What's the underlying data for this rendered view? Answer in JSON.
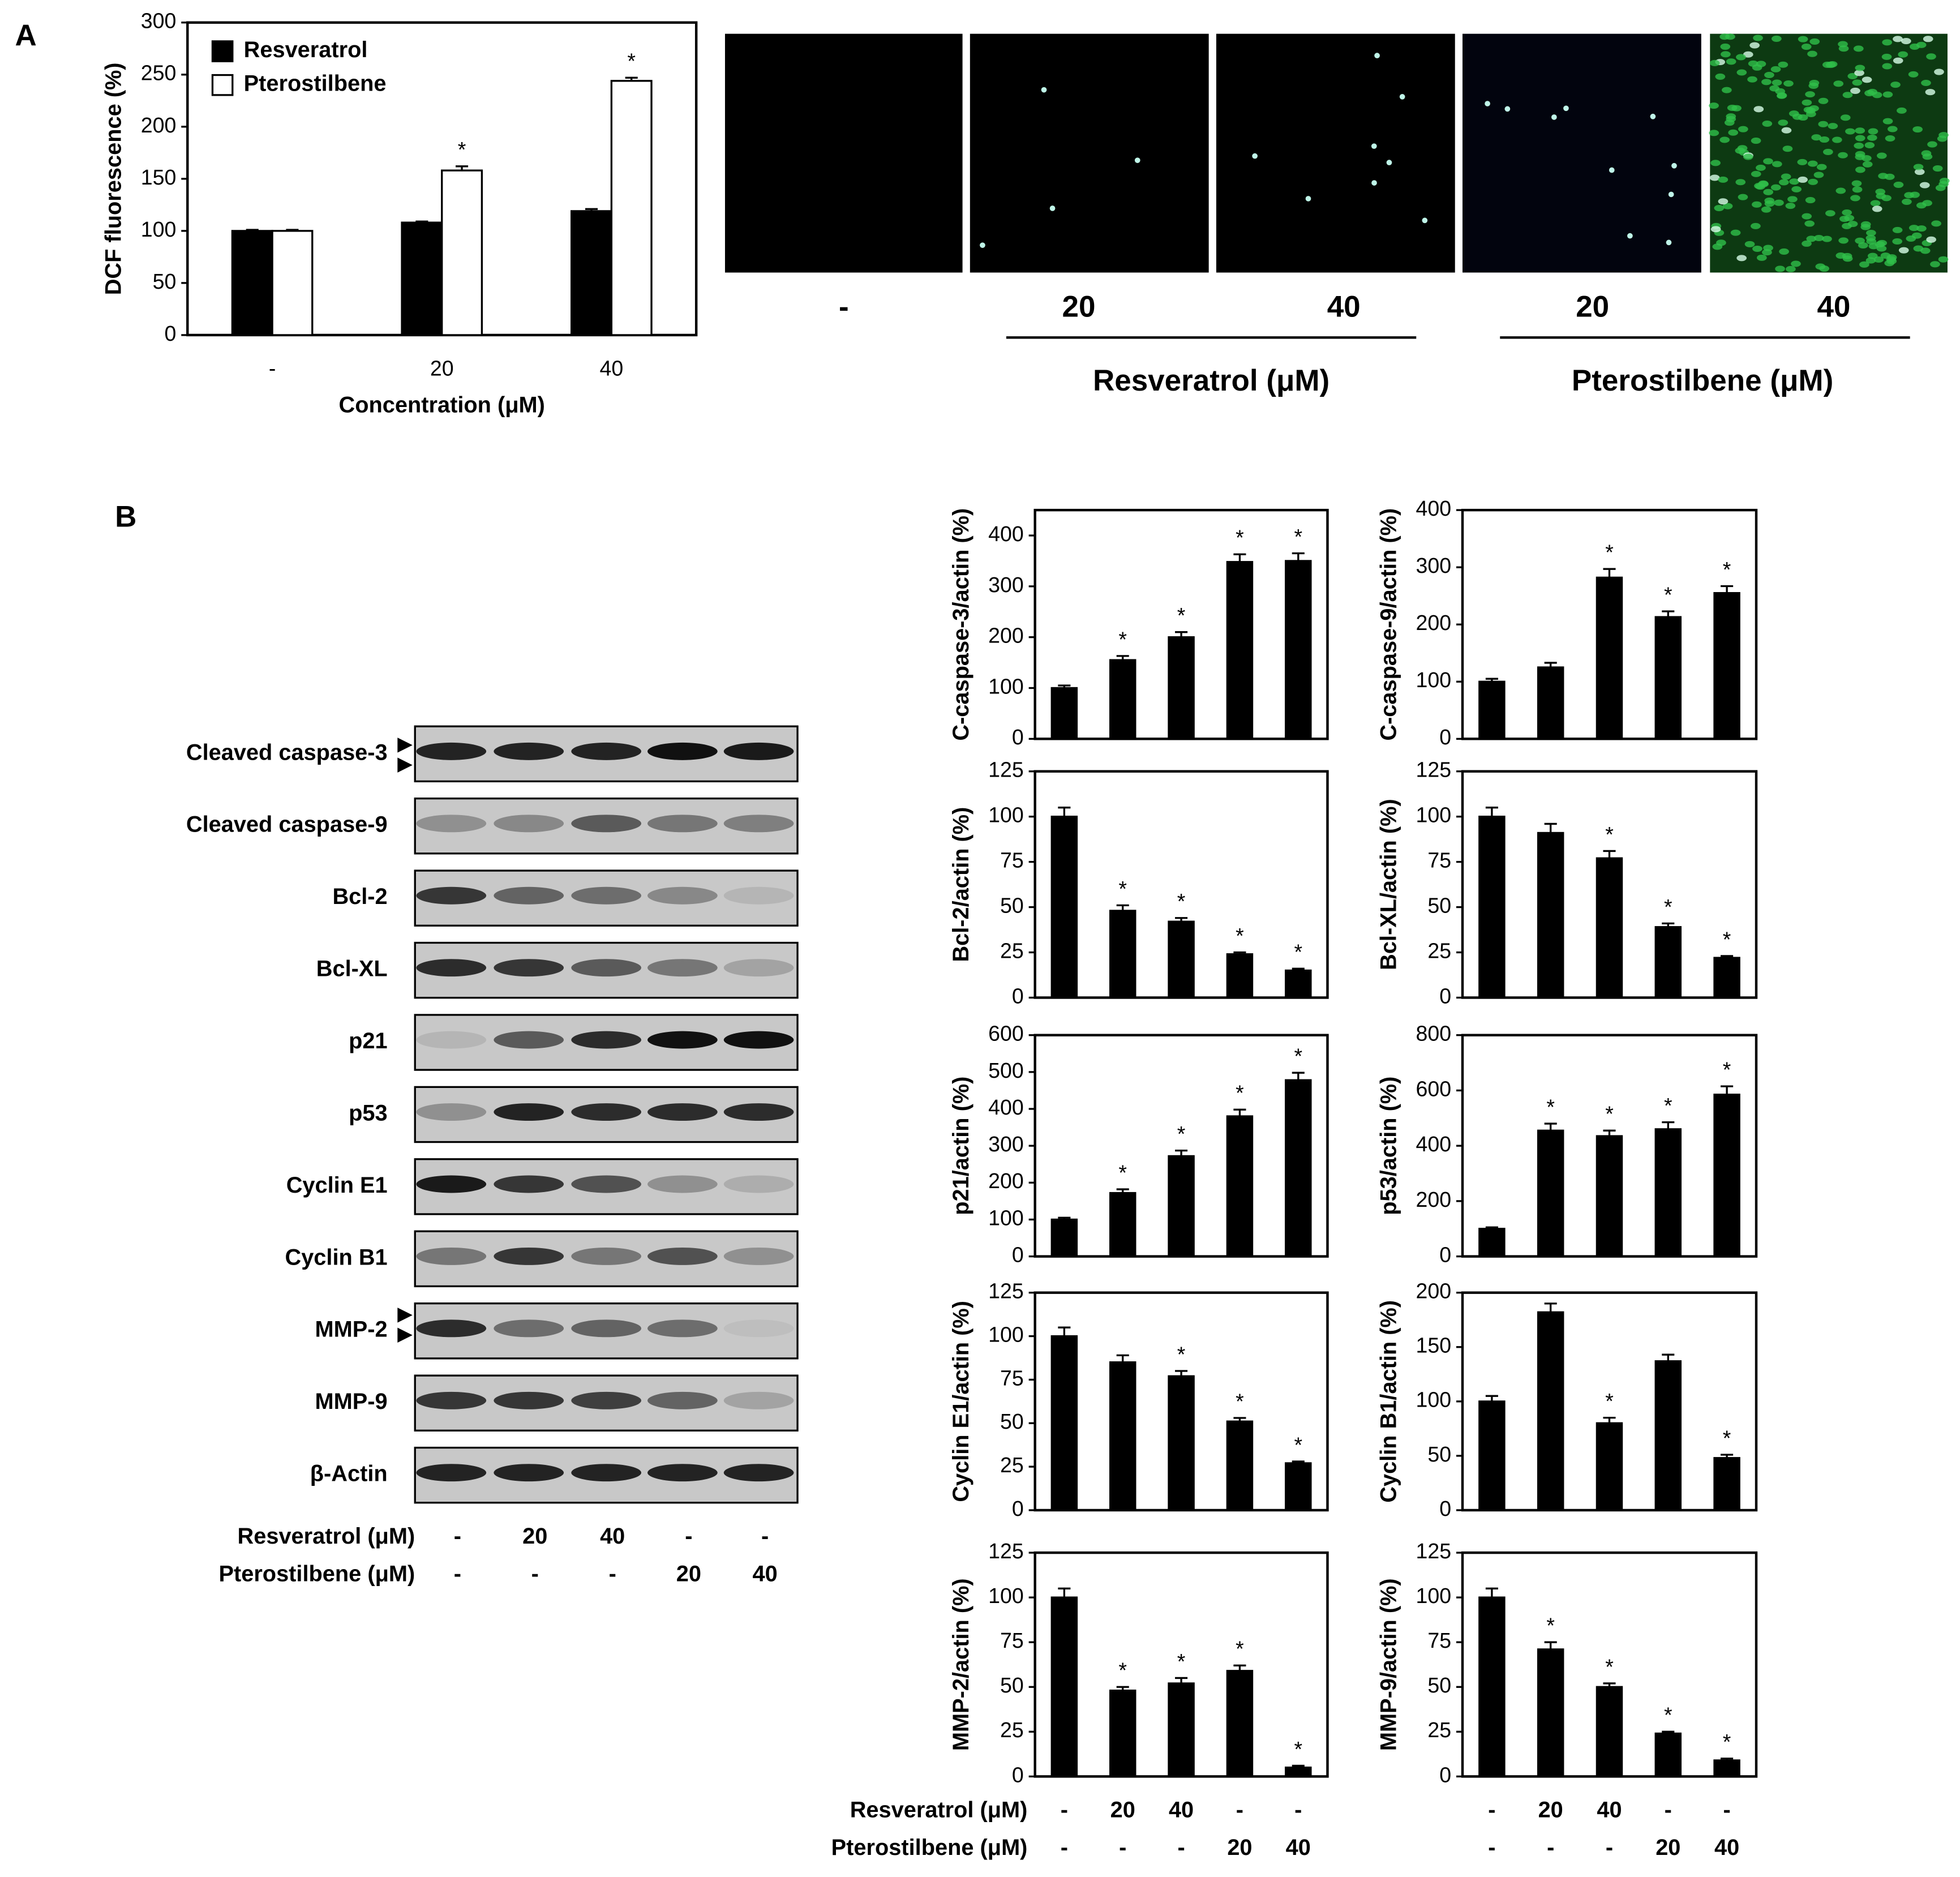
{
  "panel_labels": [
    "A",
    "B"
  ],
  "chart_data": [
    {
      "type": "bar",
      "ylabel": "DCF fluorescence (%)",
      "xlabel": "Concentration (μM)",
      "categories": [
        "-",
        "20",
        "40"
      ],
      "series": [
        {
          "name": "Resveratrol",
          "color": "#000000",
          "values": [
            100,
            108,
            119
          ],
          "errors": [
            1,
            1,
            2
          ],
          "significance": [
            null,
            null,
            null
          ]
        },
        {
          "name": "Pterostilbene",
          "color": "#ffffff",
          "values": [
            100,
            158,
            244
          ],
          "errors": [
            1,
            4,
            3
          ],
          "significance": [
            null,
            "*",
            "*"
          ]
        }
      ],
      "ylim": [
        0,
        300
      ],
      "yticks": [
        0,
        50,
        100,
        150,
        200,
        250,
        300
      ],
      "legend": "upper-left"
    },
    {
      "type": "bar",
      "ylabel": "C-caspase-3/actin (%)",
      "color": "#000000",
      "values": [
        100,
        155,
        200,
        348,
        350
      ],
      "errors": [
        5,
        8,
        10,
        15,
        15
      ],
      "significance": [
        null,
        "*",
        "*",
        "*",
        "*"
      ],
      "ylim": [
        0,
        450
      ],
      "yticks": [
        0,
        100,
        200,
        300,
        400
      ]
    },
    {
      "type": "bar",
      "ylabel": "C-caspase-9/actin (%)",
      "color": "#000000",
      "values": [
        100,
        125,
        282,
        213,
        255
      ],
      "errors": [
        5,
        8,
        15,
        10,
        12
      ],
      "significance": [
        null,
        null,
        "*",
        "*",
        "*"
      ],
      "ylim": [
        0,
        400
      ],
      "yticks": [
        0,
        100,
        200,
        300,
        400
      ]
    },
    {
      "type": "bar",
      "ylabel": "Bcl-2/actin (%)",
      "color": "#000000",
      "values": [
        100,
        48,
        42,
        24,
        15
      ],
      "errors": [
        5,
        3,
        2,
        1,
        1
      ],
      "significance": [
        null,
        "*",
        "*",
        "*",
        "*"
      ],
      "ylim": [
        0,
        125
      ],
      "yticks": [
        0,
        25,
        50,
        75,
        100,
        125
      ]
    },
    {
      "type": "bar",
      "ylabel": "Bcl-XL/actin (%)",
      "color": "#000000",
      "values": [
        100,
        91,
        77,
        39,
        22
      ],
      "errors": [
        5,
        5,
        4,
        2,
        1
      ],
      "significance": [
        null,
        null,
        "*",
        "*",
        "*"
      ],
      "ylim": [
        0,
        125
      ],
      "yticks": [
        0,
        25,
        50,
        75,
        100,
        125
      ]
    },
    {
      "type": "bar",
      "ylabel": "p21/actin (%)",
      "color": "#000000",
      "values": [
        100,
        172,
        272,
        380,
        478
      ],
      "errors": [
        5,
        10,
        15,
        18,
        20
      ],
      "significance": [
        null,
        "*",
        "*",
        "*",
        "*"
      ],
      "ylim": [
        0,
        600
      ],
      "yticks": [
        0,
        100,
        200,
        300,
        400,
        500,
        600
      ]
    },
    {
      "type": "bar",
      "ylabel": "p53/actin (%)",
      "color": "#000000",
      "values": [
        100,
        455,
        435,
        460,
        585
      ],
      "errors": [
        5,
        25,
        20,
        25,
        30
      ],
      "significance": [
        null,
        "*",
        "*",
        "*",
        "*"
      ],
      "ylim": [
        0,
        800
      ],
      "yticks": [
        0,
        200,
        400,
        600,
        800
      ]
    },
    {
      "type": "bar",
      "ylabel": "Cyclin E1/actin (%)",
      "color": "#000000",
      "values": [
        100,
        85,
        77,
        51,
        27
      ],
      "errors": [
        5,
        4,
        3,
        2,
        1
      ],
      "significance": [
        null,
        null,
        "*",
        "*",
        "*"
      ],
      "ylim": [
        0,
        125
      ],
      "yticks": [
        0,
        25,
        50,
        75,
        100,
        125
      ]
    },
    {
      "type": "bar",
      "ylabel": "Cyclin B1/actin (%)",
      "color": "#000000",
      "values": [
        100,
        182,
        80,
        137,
        48
      ],
      "errors": [
        5,
        8,
        5,
        6,
        3
      ],
      "significance": [
        null,
        null,
        "*",
        null,
        "*"
      ],
      "ylim": [
        0,
        200
      ],
      "yticks": [
        0,
        50,
        100,
        150,
        200
      ]
    },
    {
      "type": "bar",
      "ylabel": "MMP-2/actin (%)",
      "color": "#000000",
      "values": [
        100,
        48,
        52,
        59,
        5
      ],
      "errors": [
        5,
        2,
        3,
        3,
        1
      ],
      "significance": [
        null,
        "*",
        "*",
        "*",
        "*"
      ],
      "ylim": [
        0,
        125
      ],
      "yticks": [
        0,
        25,
        50,
        75,
        100,
        125
      ]
    },
    {
      "type": "bar",
      "ylabel": "MMP-9/actin (%)",
      "color": "#000000",
      "values": [
        100,
        71,
        50,
        24,
        9
      ],
      "errors": [
        5,
        4,
        2,
        1,
        1
      ],
      "significance": [
        null,
        "*",
        "*",
        "*",
        "*"
      ],
      "ylim": [
        0,
        125
      ],
      "yticks": [
        0,
        25,
        50,
        75,
        100,
        125
      ]
    }
  ],
  "micrographs": {
    "labels": [
      "-",
      "20",
      "40",
      "20",
      "40"
    ],
    "groups": [
      "Resveratrol (μM)",
      "Pterostilbene (μM)"
    ]
  },
  "western_blot": {
    "bands": [
      "Cleaved caspase-3",
      "Cleaved caspase-9",
      "Bcl-2",
      "Bcl-XL",
      "p21",
      "p53",
      "Cyclin E1",
      "Cyclin B1",
      "MMP-2",
      "MMP-9",
      "β-Actin"
    ],
    "treatments": [
      {
        "name": "Resveratrol (μM)",
        "levels": [
          "-",
          "20",
          "40",
          "-",
          "-"
        ]
      },
      {
        "name": "Pterostilbene (μM)",
        "levels": [
          "-",
          "-",
          "-",
          "20",
          "40"
        ]
      }
    ]
  }
}
